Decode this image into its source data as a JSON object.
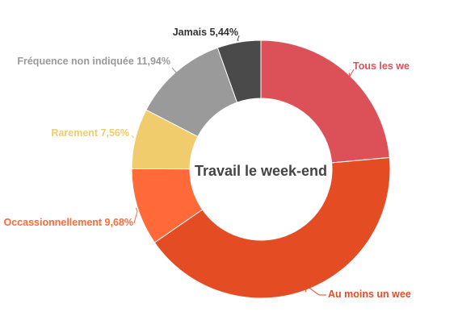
{
  "chart_data": {
    "type": "pie",
    "title": "Travail le week-end",
    "categories": [
      "Tous les we",
      "Au moins un wee",
      "Occassionnellement",
      "Rarement",
      "Fréquence non indiquée",
      "Jamais"
    ],
    "values": [
      23.55,
      41.83,
      9.68,
      7.56,
      11.94,
      5.44
    ],
    "data_labels": [
      "Tous les we",
      "Au moins un wee",
      "Occassionnellement 9,68%",
      "Rarement 7,56%",
      "Fréquence non indiquée 11,94%",
      "Jamais 5,44%"
    ],
    "colors": [
      "#dc5157",
      "#e44d24",
      "#ff6a38",
      "#f0cc6c",
      "#9a9a9a",
      "#4a4a4a"
    ],
    "label_colors": [
      "#dc5157",
      "#e44d24",
      "#ff6a38",
      "#f0cc6c",
      "#9a9a9a",
      "#333333"
    ],
    "donut": true,
    "legend": "none"
  }
}
